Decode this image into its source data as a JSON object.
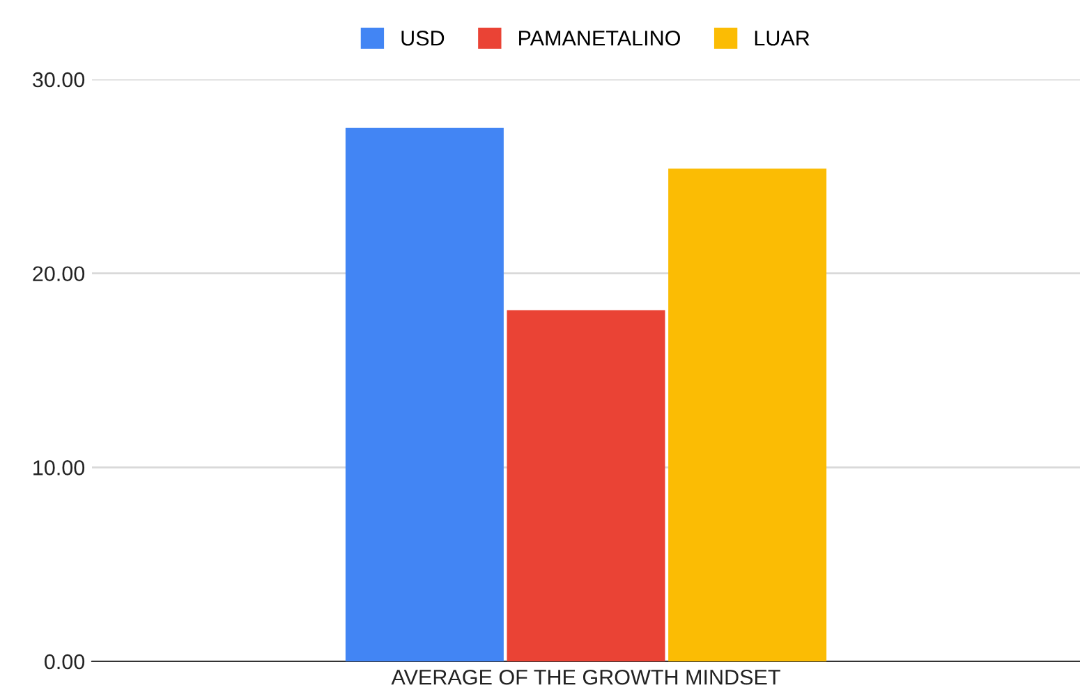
{
  "chart_data": {
    "type": "bar",
    "categories": [
      "AVERAGE OF THE GROWTH MINDSET"
    ],
    "series": [
      {
        "name": "USD",
        "color": "#4285f4",
        "values": [
          27.5
        ]
      },
      {
        "name": "PAMANETALINO",
        "color": "#ea4335",
        "values": [
          18.1
        ]
      },
      {
        "name": "LUAR",
        "color": "#fbbc04",
        "values": [
          25.4
        ]
      }
    ],
    "ylim": [
      0,
      30
    ],
    "yticks": [
      {
        "value": 0,
        "label": "0.00"
      },
      {
        "value": 10,
        "label": "10.00"
      },
      {
        "value": 20,
        "label": "20.00"
      },
      {
        "value": 30,
        "label": "30.00"
      }
    ],
    "grid": "y",
    "legend": "top"
  }
}
